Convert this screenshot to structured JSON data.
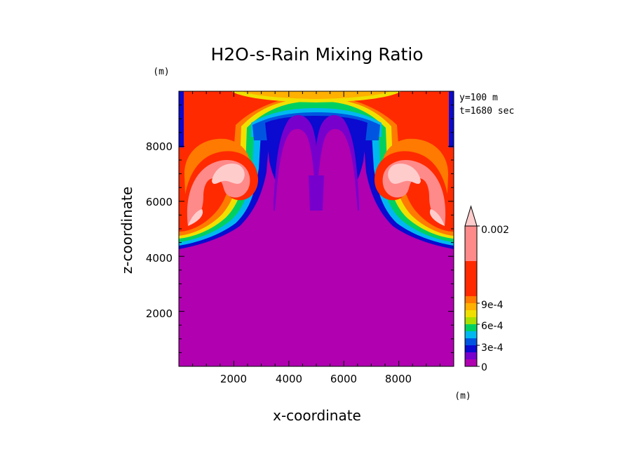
{
  "chart_data": {
    "type": "heatmap",
    "title": "H2O-s-Rain Mixing Ratio",
    "xlabel": "x-coordinate",
    "ylabel": "z-coordinate",
    "x_unit": "(m)",
    "y_unit": "(m)",
    "xlim": [
      0,
      10000
    ],
    "ylim": [
      0,
      10000
    ],
    "x_ticks": [
      2000,
      4000,
      6000,
      8000
    ],
    "x_tick_labels": [
      "2000",
      "4000",
      "6000",
      "8000"
    ],
    "y_ticks": [
      2000,
      4000,
      6000,
      8000
    ],
    "y_tick_labels": [
      "2000",
      "4000",
      "6000",
      "8000"
    ],
    "info": [
      "y=100 m",
      "t=1680 sec"
    ],
    "colorbar": {
      "levels": [
        0,
        0.0001,
        0.0002,
        0.0003,
        0.0004,
        0.0005,
        0.0006,
        0.0007,
        0.0008,
        0.0009,
        0.001,
        0.0015,
        0.002
      ],
      "colors": [
        "#b000b0",
        "#7700cc",
        "#0a0ad0",
        "#0055e0",
        "#00b8f0",
        "#00d060",
        "#a8e000",
        "#f0e000",
        "#ffb000",
        "#ff7a00",
        "#ff2a00",
        "#ff8a8a",
        "#ffcccc"
      ],
      "labeled_ticks": [
        {
          "value": 0,
          "label": "0"
        },
        {
          "value": 0.0003,
          "label": "3e-4"
        },
        {
          "value": 0.0006,
          "label": "6e-4"
        },
        {
          "value": 0.0009,
          "label": "9e-4"
        },
        {
          "value": 0.002,
          "label": "0.002"
        }
      ]
    }
  }
}
